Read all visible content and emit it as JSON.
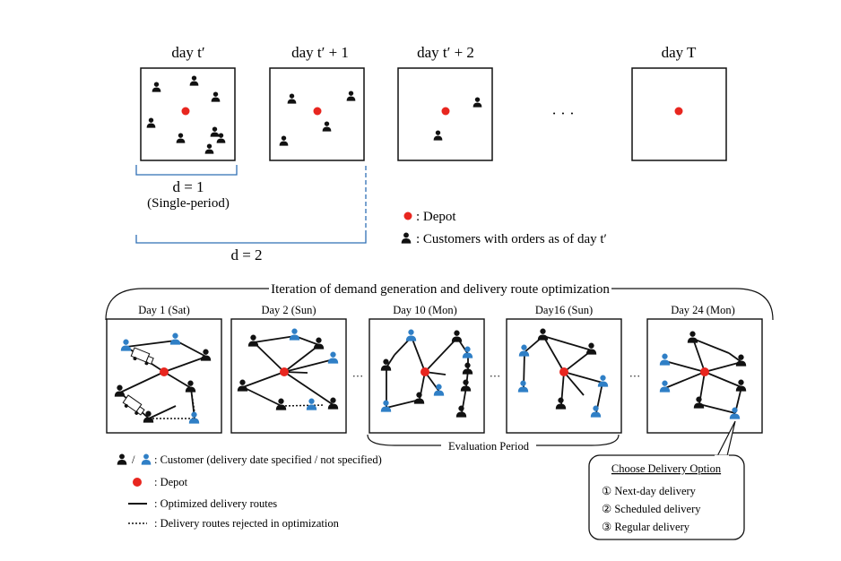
{
  "top": {
    "panels": [
      {
        "label": "day t′",
        "customers": 8
      },
      {
        "label": "day t′ + 1",
        "customers": 4
      },
      {
        "label": "day t′ + 2",
        "customers": 2
      },
      {
        "label": "day T",
        "customers": 0
      }
    ],
    "ellipsis": "·  ·  ·",
    "d1_label": "d = 1",
    "d1_sub": "(Single-period)",
    "d2_label": "d = 2",
    "legend_depot": ": Depot",
    "legend_customers": ": Customers with orders as of day t′"
  },
  "bottom": {
    "title": "Iteration of demand generation and delivery route optimization",
    "panels": [
      {
        "label": "Day 1 (Sat)"
      },
      {
        "label": "Day 2 (Sun)"
      },
      {
        "label": "Day 10 (Mon)"
      },
      {
        "label": "Day16 (Sun)"
      },
      {
        "label": "Day 24 (Mon)"
      }
    ],
    "dots": "···",
    "evaluation_label": "Evaluation  Period",
    "legend": {
      "customer": ": Customer (delivery date specified / not specified)",
      "slash": "/",
      "depot": ": Depot",
      "optimized": ": Optimized delivery routes",
      "rejected": ": Delivery routes rejected in optimization"
    },
    "options_box": {
      "title": "Choose Delivery Option",
      "options": [
        "① Next-day delivery",
        "② Scheduled delivery",
        "③ Regular delivery"
      ]
    }
  },
  "colors": {
    "depot": "#e8261f",
    "customer_specified": "#111111",
    "customer_unspecified": "#2f7fc6"
  }
}
